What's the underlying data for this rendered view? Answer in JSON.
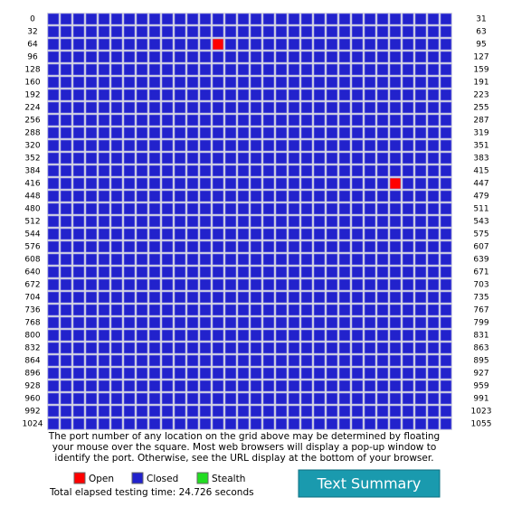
{
  "grid": {
    "row_start": [
      0,
      32,
      64,
      96,
      128,
      160,
      192,
      224,
      256,
      288,
      320,
      352,
      384,
      416,
      448,
      480,
      512,
      544,
      576,
      608,
      640,
      672,
      704,
      736,
      768,
      800,
      832,
      864,
      896,
      928,
      960,
      992,
      1024
    ],
    "row_end": [
      31,
      63,
      95,
      127,
      159,
      191,
      223,
      255,
      287,
      319,
      351,
      383,
      415,
      447,
      479,
      511,
      543,
      575,
      607,
      639,
      671,
      703,
      735,
      767,
      799,
      831,
      863,
      895,
      927,
      959,
      991,
      1023,
      1055
    ],
    "open_ports": [
      77,
      443
    ],
    "colors": {
      "open": "#ff0000",
      "closed": "#2222cc",
      "stealth": "#22dd22"
    }
  },
  "note": {
    "lines": [
      "The port number of any location on the grid above may be determined by floating",
      "your mouse over the square. Most web browsers will display a pop-up window to",
      "identify the port. Otherwise, see the URL display at the bottom of your browser."
    ]
  },
  "legend": {
    "open": "Open",
    "closed": "Closed",
    "stealth": "Stealth"
  },
  "elapsed": "Total elapsed testing time: 24.726 seconds",
  "button": "Text Summary"
}
